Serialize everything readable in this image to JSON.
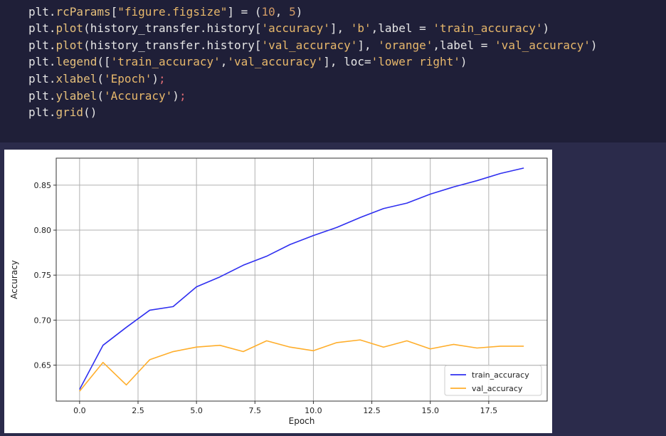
{
  "code": {
    "lines": [
      "plt.rcParams[\"figure.figsize\"] = (10, 5)",
      "plt.plot(history_transfer.history['accuracy'], 'b',label = 'train_accuracy')",
      "plt.plot(history_transfer.history['val_accuracy'], 'orange',label = 'val_accuracy')",
      "plt.legend(['train_accuracy','val_accuracy'], loc='lower right')",
      "plt.xlabel('Epoch');",
      "plt.ylabel('Accuracy');",
      "plt.grid()"
    ]
  },
  "colors": {
    "train": "#2f2ff0",
    "val": "#ffae2b",
    "grid": "#b0b0b0"
  },
  "chart_data": {
    "type": "line",
    "xlabel": "Epoch",
    "ylabel": "Accuracy",
    "xlim": [
      -1,
      20
    ],
    "ylim": [
      0.61,
      0.88
    ],
    "xticks": [
      "0.0",
      "2.5",
      "5.0",
      "7.5",
      "10.0",
      "12.5",
      "15.0",
      "17.5"
    ],
    "yticks": [
      "0.65",
      "0.70",
      "0.75",
      "0.80",
      "0.85"
    ],
    "grid": true,
    "legend_position": "lower right",
    "x": [
      0,
      1,
      2,
      3,
      4,
      5,
      6,
      7,
      8,
      9,
      10,
      11,
      12,
      13,
      14,
      15,
      16,
      17,
      18,
      19
    ],
    "series": [
      {
        "name": "train_accuracy",
        "values": [
          0.623,
          0.672,
          0.692,
          0.711,
          0.715,
          0.737,
          0.748,
          0.761,
          0.771,
          0.784,
          0.794,
          0.803,
          0.814,
          0.824,
          0.83,
          0.84,
          0.848,
          0.855,
          0.863,
          0.869
        ]
      },
      {
        "name": "val_accuracy",
        "values": [
          0.621,
          0.653,
          0.628,
          0.656,
          0.665,
          0.67,
          0.672,
          0.665,
          0.677,
          0.67,
          0.666,
          0.675,
          0.678,
          0.67,
          0.677,
          0.668,
          0.673,
          0.669,
          0.671,
          0.671
        ]
      }
    ]
  }
}
